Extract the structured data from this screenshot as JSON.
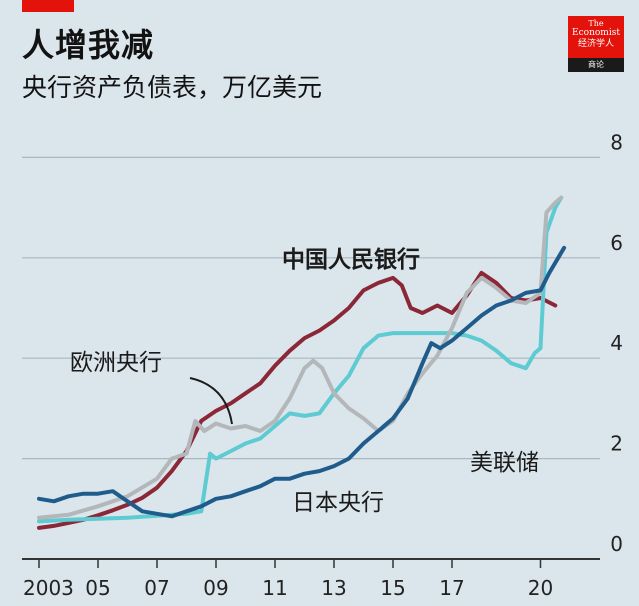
{
  "header": {
    "title": "人增我减",
    "subtitle": "央行资产负债表，万亿美元"
  },
  "logo": {
    "line1": "The",
    "line2": "Economist",
    "line3": "经济学人",
    "line4": "商论"
  },
  "colors": {
    "background": "#dbe6ec",
    "grid": "#a9b7be",
    "pboc": "#8b2737",
    "ecb": "#b3b7b9",
    "fed": "#5dcbd1",
    "boj": "#1f5c8c",
    "brand": "#e3120b"
  },
  "chart_data": {
    "type": "line",
    "title": "人增我减",
    "subtitle": "央行资产负债表，万亿美元",
    "ylim": [
      0,
      8
    ],
    "xlim": [
      2003,
      2021
    ],
    "yticks": [
      0,
      2,
      4,
      6,
      8
    ],
    "ytick_labels": [
      "0",
      "2",
      "4",
      "6",
      "8"
    ],
    "xticks": [
      2003,
      2005,
      2007,
      2009,
      2011,
      2013,
      2015,
      2017,
      2020
    ],
    "xtick_labels": [
      "2003",
      "05",
      "07",
      "09",
      "11",
      "13",
      "15",
      "17",
      "20"
    ],
    "grid": true,
    "series": [
      {
        "name": "中国人民银行",
        "key": "pboc",
        "label_style": "bold",
        "points": [
          [
            2003.0,
            0.62
          ],
          [
            2003.5,
            0.66
          ],
          [
            2004.0,
            0.72
          ],
          [
            2004.5,
            0.78
          ],
          [
            2005.0,
            0.87
          ],
          [
            2005.5,
            0.97
          ],
          [
            2006.0,
            1.08
          ],
          [
            2006.5,
            1.22
          ],
          [
            2007.0,
            1.42
          ],
          [
            2007.5,
            1.75
          ],
          [
            2008.0,
            2.15
          ],
          [
            2008.5,
            2.75
          ],
          [
            2009.0,
            2.95
          ],
          [
            2009.5,
            3.1
          ],
          [
            2010.0,
            3.3
          ],
          [
            2010.5,
            3.5
          ],
          [
            2011.0,
            3.85
          ],
          [
            2011.5,
            4.15
          ],
          [
            2012.0,
            4.4
          ],
          [
            2012.5,
            4.55
          ],
          [
            2013.0,
            4.75
          ],
          [
            2013.5,
            5.0
          ],
          [
            2014.0,
            5.35
          ],
          [
            2014.5,
            5.5
          ],
          [
            2015.0,
            5.6
          ],
          [
            2015.3,
            5.45
          ],
          [
            2015.6,
            5.0
          ],
          [
            2016.0,
            4.9
          ],
          [
            2016.5,
            5.05
          ],
          [
            2017.0,
            4.9
          ],
          [
            2017.5,
            5.25
          ],
          [
            2018.0,
            5.7
          ],
          [
            2018.5,
            5.5
          ],
          [
            2019.0,
            5.2
          ],
          [
            2019.5,
            5.15
          ],
          [
            2020.0,
            5.2
          ],
          [
            2020.5,
            5.05
          ]
        ]
      },
      {
        "name": "欧洲央行",
        "key": "ecb",
        "points": [
          [
            2003.0,
            0.82
          ],
          [
            2004.0,
            0.88
          ],
          [
            2005.0,
            1.05
          ],
          [
            2006.0,
            1.25
          ],
          [
            2007.0,
            1.6
          ],
          [
            2007.5,
            2.0
          ],
          [
            2008.0,
            2.1
          ],
          [
            2008.3,
            2.75
          ],
          [
            2008.6,
            2.55
          ],
          [
            2009.0,
            2.7
          ],
          [
            2009.5,
            2.6
          ],
          [
            2010.0,
            2.65
          ],
          [
            2010.5,
            2.55
          ],
          [
            2011.0,
            2.75
          ],
          [
            2011.5,
            3.2
          ],
          [
            2012.0,
            3.8
          ],
          [
            2012.3,
            3.95
          ],
          [
            2012.6,
            3.8
          ],
          [
            2013.0,
            3.3
          ],
          [
            2013.5,
            3.0
          ],
          [
            2014.0,
            2.8
          ],
          [
            2014.5,
            2.55
          ],
          [
            2015.0,
            2.75
          ],
          [
            2015.5,
            3.3
          ],
          [
            2016.0,
            3.7
          ],
          [
            2016.5,
            4.05
          ],
          [
            2017.0,
            4.6
          ],
          [
            2017.5,
            5.3
          ],
          [
            2018.0,
            5.6
          ],
          [
            2018.5,
            5.4
          ],
          [
            2019.0,
            5.15
          ],
          [
            2019.5,
            5.1
          ],
          [
            2020.0,
            5.3
          ],
          [
            2020.2,
            6.9
          ],
          [
            2020.5,
            7.1
          ],
          [
            2020.7,
            7.2
          ]
        ]
      },
      {
        "name": "美联储",
        "key": "fed",
        "points": [
          [
            2003.0,
            0.75
          ],
          [
            2004.0,
            0.78
          ],
          [
            2005.0,
            0.8
          ],
          [
            2006.0,
            0.82
          ],
          [
            2007.0,
            0.86
          ],
          [
            2008.0,
            0.9
          ],
          [
            2008.5,
            0.95
          ],
          [
            2008.8,
            2.1
          ],
          [
            2009.0,
            2.0
          ],
          [
            2009.5,
            2.15
          ],
          [
            2010.0,
            2.3
          ],
          [
            2010.5,
            2.4
          ],
          [
            2011.0,
            2.65
          ],
          [
            2011.5,
            2.9
          ],
          [
            2012.0,
            2.85
          ],
          [
            2012.5,
            2.9
          ],
          [
            2013.0,
            3.3
          ],
          [
            2013.5,
            3.65
          ],
          [
            2014.0,
            4.2
          ],
          [
            2014.5,
            4.45
          ],
          [
            2015.0,
            4.5
          ],
          [
            2016.0,
            4.5
          ],
          [
            2017.0,
            4.5
          ],
          [
            2017.5,
            4.45
          ],
          [
            2018.0,
            4.35
          ],
          [
            2018.5,
            4.15
          ],
          [
            2019.0,
            3.9
          ],
          [
            2019.5,
            3.8
          ],
          [
            2019.8,
            4.1
          ],
          [
            2020.0,
            4.2
          ],
          [
            2020.2,
            6.5
          ],
          [
            2020.5,
            7.0
          ],
          [
            2020.7,
            7.2
          ]
        ]
      },
      {
        "name": "日本央行",
        "key": "boj",
        "points": [
          [
            2003.0,
            1.2
          ],
          [
            2003.5,
            1.15
          ],
          [
            2004.0,
            1.25
          ],
          [
            2004.5,
            1.3
          ],
          [
            2005.0,
            1.3
          ],
          [
            2005.5,
            1.35
          ],
          [
            2006.0,
            1.15
          ],
          [
            2006.5,
            0.95
          ],
          [
            2007.0,
            0.9
          ],
          [
            2007.5,
            0.85
          ],
          [
            2008.0,
            0.95
          ],
          [
            2008.5,
            1.05
          ],
          [
            2009.0,
            1.2
          ],
          [
            2009.5,
            1.25
          ],
          [
            2010.0,
            1.35
          ],
          [
            2010.5,
            1.45
          ],
          [
            2011.0,
            1.6
          ],
          [
            2011.5,
            1.6
          ],
          [
            2012.0,
            1.7
          ],
          [
            2012.5,
            1.75
          ],
          [
            2013.0,
            1.85
          ],
          [
            2013.5,
            2.0
          ],
          [
            2014.0,
            2.3
          ],
          [
            2014.5,
            2.55
          ],
          [
            2015.0,
            2.8
          ],
          [
            2015.5,
            3.2
          ],
          [
            2016.0,
            3.9
          ],
          [
            2016.3,
            4.3
          ],
          [
            2016.6,
            4.2
          ],
          [
            2017.0,
            4.35
          ],
          [
            2017.5,
            4.6
          ],
          [
            2018.0,
            4.85
          ],
          [
            2018.5,
            5.05
          ],
          [
            2019.0,
            5.15
          ],
          [
            2019.5,
            5.3
          ],
          [
            2020.0,
            5.35
          ],
          [
            2020.3,
            5.7
          ],
          [
            2020.6,
            6.0
          ],
          [
            2020.8,
            6.2
          ]
        ]
      }
    ]
  }
}
